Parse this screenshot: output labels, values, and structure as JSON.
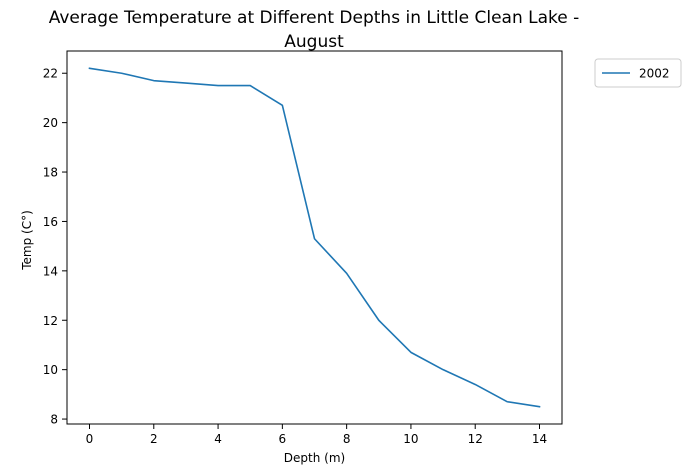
{
  "chart_data": {
    "type": "line",
    "title": "Average Temperature at Different Depths in Little Clean Lake - August",
    "title_lines": [
      "Average Temperature at Different Depths in Little Clean Lake -",
      "August"
    ],
    "xlabel": "Depth (m)",
    "ylabel": "Temp (C°)",
    "xlim": [
      -0.7,
      14.7
    ],
    "ylim": [
      7.8,
      22.9
    ],
    "xticks": [
      0,
      2,
      4,
      6,
      8,
      10,
      12,
      14
    ],
    "yticks": [
      8,
      10,
      12,
      14,
      16,
      18,
      20,
      22
    ],
    "grid": false,
    "legend_position": "outside-top-right",
    "series": [
      {
        "name": "2002",
        "color": "#1f77b4",
        "x": [
          0,
          1,
          2,
          3,
          4,
          5,
          6,
          7,
          8,
          9,
          10,
          11,
          12,
          13,
          14
        ],
        "y": [
          22.2,
          22.0,
          21.7,
          21.6,
          21.5,
          21.5,
          20.7,
          15.3,
          13.9,
          12.0,
          10.7,
          10.0,
          9.4,
          8.7,
          8.5
        ]
      }
    ]
  }
}
